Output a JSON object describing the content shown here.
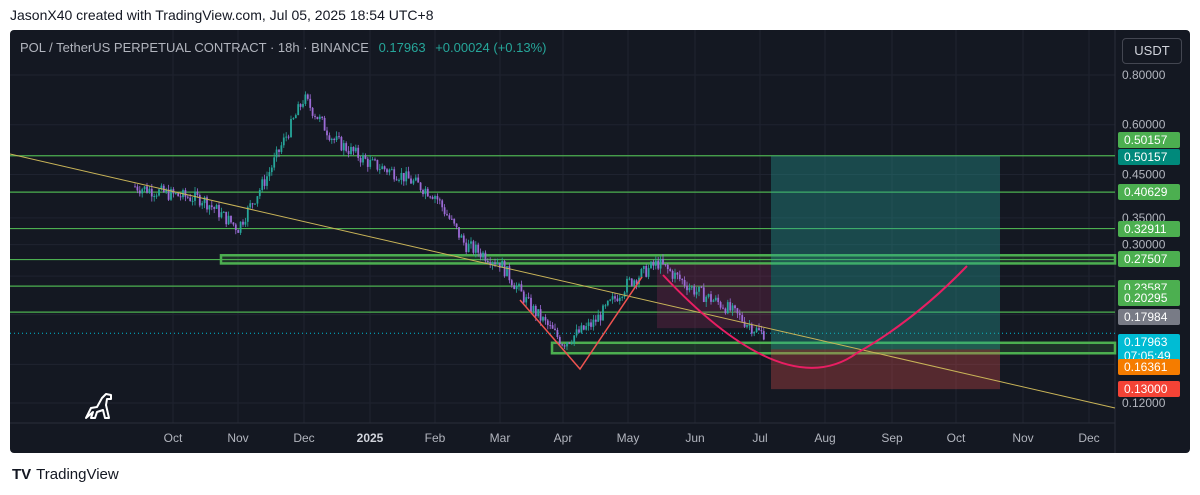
{
  "header": {
    "attribution": "JasonX40 created with TradingView.com, Jul 05, 2025 18:54 UTC+8"
  },
  "legend": {
    "symbol": "POL / TetherUS PERPETUAL CONTRACT · 18h · BINANCE",
    "price": "0.17963",
    "change": "+0.00024 (+0.13%)"
  },
  "currency_button": "USDT",
  "footer": {
    "brand": "TradingView"
  },
  "colors": {
    "background": "#141822",
    "bull": "#26a69a",
    "bear": "#ef5350",
    "level_line": "#4caf50",
    "trend_line": "#c9b458",
    "arc": "#e91e63"
  },
  "chart_data": {
    "type": "line",
    "instrument": "POL / TetherUS PERPETUAL CONTRACT",
    "timeframe": "18h",
    "exchange": "BINANCE",
    "x_ticks": [
      "Oct",
      "Nov",
      "Dec",
      "2025",
      "Feb",
      "Mar",
      "Apr",
      "May",
      "Jun",
      "Jul",
      "Aug",
      "Sep",
      "Oct",
      "Nov",
      "Dec"
    ],
    "y_ticks": [
      "0.80000",
      "0.60000",
      "0.45000",
      "0.35000",
      "0.30000",
      "0.12000"
    ],
    "y_scale": "log",
    "price_labels": [
      {
        "value": "0.50157",
        "kind": "level"
      },
      {
        "value": "0.50157",
        "kind": "take-profit"
      },
      {
        "value": "0.40629",
        "kind": "level"
      },
      {
        "value": "0.32911",
        "kind": "level"
      },
      {
        "value": "0.27507",
        "kind": "level"
      },
      {
        "value": "0.23587",
        "kind": "level"
      },
      {
        "value": "0.20295",
        "kind": "level"
      },
      {
        "value": "0.17984",
        "kind": "reference"
      },
      {
        "value": "0.17963",
        "kind": "last",
        "countdown": "07:05:49"
      },
      {
        "value": "0.16361",
        "kind": "entry"
      },
      {
        "value": "0.13000",
        "kind": "stop-loss"
      }
    ],
    "horizontal_levels": [
      0.50157,
      0.40629,
      0.32911,
      0.27507,
      0.23587,
      0.20295
    ],
    "zones": [
      {
        "from_month": "Nov",
        "low": 0.269,
        "high": 0.282
      },
      {
        "from_month": "Mar",
        "low": 0.16,
        "high": 0.17
      }
    ],
    "position": {
      "entry": 0.16361,
      "take_profit": 0.50157,
      "stop_loss": 0.13
    },
    "price_series": [
      {
        "x": "Sep",
        "y": 0.42
      },
      {
        "x": "Oct",
        "y": 0.4
      },
      {
        "x": "Oct",
        "y": 0.39
      },
      {
        "x": "Nov",
        "y": 0.33
      },
      {
        "x": "Nov",
        "y": 0.45
      },
      {
        "x": "Dec",
        "y": 0.7
      },
      {
        "x": "Dec",
        "y": 0.55
      },
      {
        "x": "2025",
        "y": 0.48
      },
      {
        "x": "2025",
        "y": 0.45
      },
      {
        "x": "Feb",
        "y": 0.4
      },
      {
        "x": "Feb",
        "y": 0.3
      },
      {
        "x": "Mar",
        "y": 0.27
      },
      {
        "x": "Mar",
        "y": 0.21
      },
      {
        "x": "Apr",
        "y": 0.17
      },
      {
        "x": "Apr",
        "y": 0.19
      },
      {
        "x": "May",
        "y": 0.24
      },
      {
        "x": "May",
        "y": 0.27
      },
      {
        "x": "Jun",
        "y": 0.23
      },
      {
        "x": "Jun",
        "y": 0.21
      },
      {
        "x": "Jul",
        "y": 0.18
      }
    ]
  }
}
